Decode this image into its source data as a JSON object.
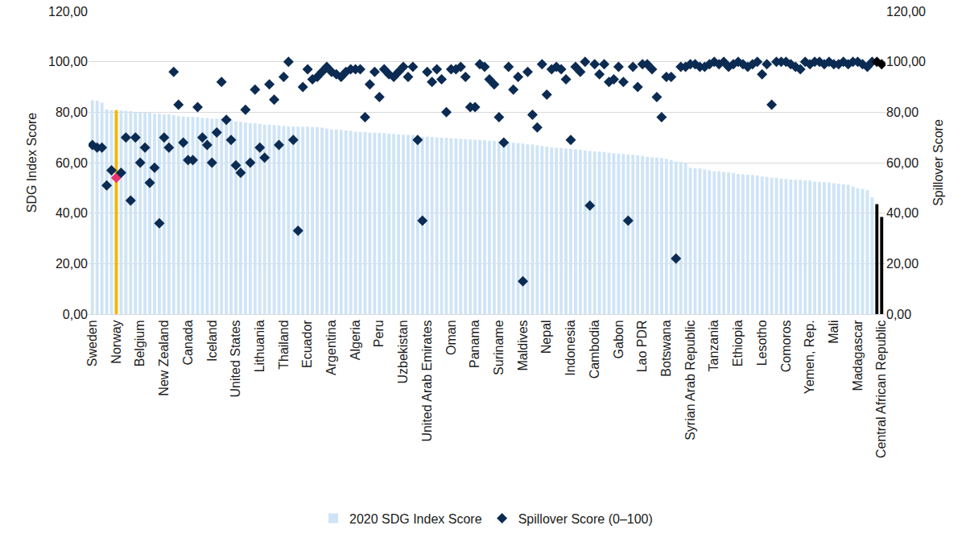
{
  "chart_data": {
    "type": "bar",
    "ylabel": "SDG Index Score",
    "y2label": "Spillover Score",
    "categories": [
      "Sweden",
      null,
      null,
      null,
      null,
      "Norway",
      null,
      null,
      null,
      null,
      "Belgium",
      null,
      null,
      null,
      null,
      "New Zealand",
      null,
      null,
      null,
      null,
      "Canada",
      null,
      null,
      null,
      null,
      "Iceland",
      null,
      null,
      null,
      null,
      "United States",
      null,
      null,
      null,
      null,
      "Lithuania",
      null,
      null,
      null,
      null,
      "Thailand",
      null,
      null,
      null,
      null,
      "Ecuador",
      null,
      null,
      null,
      null,
      "Argentina",
      null,
      null,
      null,
      null,
      "Algeria",
      null,
      null,
      null,
      null,
      "Peru",
      null,
      null,
      null,
      null,
      "Uzbekistan",
      null,
      null,
      null,
      null,
      "United Arab Emirates",
      null,
      null,
      null,
      null,
      "Oman",
      null,
      null,
      null,
      null,
      "Panama",
      null,
      null,
      null,
      null,
      "Suriname",
      null,
      null,
      null,
      null,
      "Maldives",
      null,
      null,
      null,
      null,
      "Nepal",
      null,
      null,
      null,
      null,
      "Indonesia",
      null,
      null,
      null,
      null,
      "Cambodia",
      null,
      null,
      null,
      null,
      "Gabon",
      null,
      null,
      null,
      null,
      "Lao PDR",
      null,
      null,
      null,
      null,
      "Botswana",
      null,
      null,
      null,
      null,
      "Syrian Arab Republic",
      null,
      null,
      null,
      null,
      "Tanzania",
      null,
      null,
      null,
      null,
      "Ethiopia",
      null,
      null,
      null,
      null,
      "Lesotho",
      null,
      null,
      null,
      null,
      "Comoros",
      null,
      null,
      null,
      null,
      "Yemen, Rep.",
      null,
      null,
      null,
      null,
      "Mali",
      null,
      null,
      null,
      null,
      "Madagascar",
      null,
      null,
      null,
      null,
      "Central African Republic"
    ],
    "series": [
      {
        "name": "2020 SDG Index Score",
        "type": "bar",
        "color": "#cfe4f6",
        "colors": [
          "#cfe4f6",
          "#cfe4f6",
          "#cfe4f6",
          "#cfe4f6",
          "#cfe4f6",
          "#f5b400",
          "#cfe4f6",
          "#cfe4f6",
          "#cfe4f6",
          "#cfe4f6",
          "#cfe4f6",
          "#cfe4f6",
          "#cfe4f6",
          "#cfe4f6",
          "#cfe4f6",
          "#cfe4f6",
          "#cfe4f6",
          "#cfe4f6",
          "#cfe4f6",
          "#cfe4f6",
          "#cfe4f6",
          "#cfe4f6",
          "#cfe4f6",
          "#cfe4f6",
          "#cfe4f6",
          "#cfe4f6",
          "#cfe4f6",
          "#cfe4f6",
          "#cfe4f6",
          "#cfe4f6",
          "#cfe4f6",
          "#cfe4f6",
          "#cfe4f6",
          "#cfe4f6",
          "#cfe4f6",
          "#cfe4f6",
          "#cfe4f6",
          "#cfe4f6",
          "#cfe4f6",
          "#cfe4f6",
          "#cfe4f6",
          "#cfe4f6",
          "#cfe4f6",
          "#cfe4f6",
          "#cfe4f6",
          "#cfe4f6",
          "#cfe4f6",
          "#cfe4f6",
          "#cfe4f6",
          "#cfe4f6",
          "#cfe4f6",
          "#cfe4f6",
          "#cfe4f6",
          "#cfe4f6",
          "#cfe4f6",
          "#cfe4f6",
          "#cfe4f6",
          "#cfe4f6",
          "#cfe4f6",
          "#cfe4f6",
          "#cfe4f6",
          "#cfe4f6",
          "#cfe4f6",
          "#cfe4f6",
          "#cfe4f6",
          "#cfe4f6",
          "#cfe4f6",
          "#cfe4f6",
          "#cfe4f6",
          "#cfe4f6",
          "#cfe4f6",
          "#cfe4f6",
          "#cfe4f6",
          "#cfe4f6",
          "#cfe4f6",
          "#cfe4f6",
          "#cfe4f6",
          "#cfe4f6",
          "#cfe4f6",
          "#cfe4f6",
          "#cfe4f6",
          "#cfe4f6",
          "#cfe4f6",
          "#cfe4f6",
          "#cfe4f6",
          "#cfe4f6",
          "#cfe4f6",
          "#cfe4f6",
          "#cfe4f6",
          "#cfe4f6",
          "#cfe4f6",
          "#cfe4f6",
          "#cfe4f6",
          "#cfe4f6",
          "#cfe4f6",
          "#cfe4f6",
          "#cfe4f6",
          "#cfe4f6",
          "#cfe4f6",
          "#cfe4f6",
          "#cfe4f6",
          "#cfe4f6",
          "#cfe4f6",
          "#cfe4f6",
          "#cfe4f6",
          "#cfe4f6",
          "#cfe4f6",
          "#cfe4f6",
          "#cfe4f6",
          "#cfe4f6",
          "#cfe4f6",
          "#cfe4f6",
          "#cfe4f6",
          "#cfe4f6",
          "#cfe4f6",
          "#cfe4f6",
          "#cfe4f6",
          "#cfe4f6",
          "#cfe4f6",
          "#cfe4f6",
          "#cfe4f6",
          "#cfe4f6",
          "#cfe4f6",
          "#cfe4f6",
          "#cfe4f6",
          "#cfe4f6",
          "#cfe4f6",
          "#cfe4f6",
          "#cfe4f6",
          "#cfe4f6",
          "#cfe4f6",
          "#cfe4f6",
          "#cfe4f6",
          "#cfe4f6",
          "#cfe4f6",
          "#cfe4f6",
          "#cfe4f6",
          "#cfe4f6",
          "#cfe4f6",
          "#cfe4f6",
          "#cfe4f6",
          "#cfe4f6",
          "#cfe4f6",
          "#cfe4f6",
          "#cfe4f6",
          "#cfe4f6",
          "#cfe4f6",
          "#cfe4f6",
          "#cfe4f6",
          "#cfe4f6",
          "#cfe4f6",
          "#cfe4f6",
          "#cfe4f6",
          "#cfe4f6",
          "#cfe4f6",
          "#cfe4f6",
          "#cfe4f6",
          "#cfe4f6",
          "#cfe4f6",
          "#cfe4f6",
          "#cfe4f6",
          "#cfe4f6",
          "#cfe4f6",
          "#cfe4f6"
        ],
        "values": [
          84.7,
          84.6,
          83.8,
          81.1,
          80.8,
          80.8,
          80.7,
          80.6,
          80.4,
          80.1,
          80.0,
          79.8,
          79.8,
          79.4,
          79.4,
          79.2,
          79.2,
          78.8,
          78.4,
          78.3,
          78.2,
          78.1,
          78.1,
          77.7,
          77.7,
          77.5,
          77.5,
          77.4,
          77.3,
          77.0,
          76.4,
          76.2,
          75.9,
          75.7,
          75.6,
          75.4,
          75.1,
          75.0,
          74.9,
          74.7,
          74.5,
          74.4,
          74.3,
          74.3,
          74.3,
          74.3,
          74.2,
          74.1,
          73.9,
          73.5,
          73.2,
          73.2,
          73.0,
          72.8,
          72.6,
          72.3,
          72.2,
          72.1,
          71.9,
          71.9,
          71.8,
          71.7,
          71.5,
          71.4,
          71.2,
          71.1,
          71.0,
          70.9,
          70.8,
          70.3,
          70.3,
          70.2,
          70.0,
          69.9,
          69.8,
          69.7,
          69.6,
          69.4,
          69.3,
          69.2,
          69.1,
          69.0,
          68.9,
          68.7,
          68.6,
          68.4,
          68.3,
          68.2,
          67.9,
          67.7,
          67.6,
          67.3,
          67.2,
          66.9,
          66.6,
          66.4,
          66.1,
          65.9,
          65.8,
          65.6,
          65.5,
          65.3,
          65.1,
          64.8,
          64.6,
          64.5,
          64.4,
          64.2,
          63.9,
          63.7,
          63.6,
          63.4,
          63.2,
          63.1,
          62.9,
          62.7,
          62.3,
          62.1,
          62.0,
          61.8,
          61.5,
          61.0,
          60.5,
          60.3,
          59.8,
          58.0,
          57.8,
          57.7,
          57.3,
          57.0,
          56.6,
          56.6,
          56.3,
          56.2,
          55.9,
          55.5,
          55.4,
          55.2,
          55.1,
          54.9,
          54.5,
          54.3,
          54.0,
          53.9,
          53.6,
          53.5,
          53.3,
          53.2,
          53.1,
          53.0,
          52.9,
          52.5,
          52.4,
          52.3,
          52.1,
          51.9,
          51.6,
          51.4,
          51.2,
          50.6,
          49.9,
          49.6,
          49.1,
          46.3,
          43.6,
          38.5
        ]
      },
      {
        "name": "Spillover Score (0–100)",
        "type": "scatter",
        "marker": "diamond",
        "axis": "y2",
        "color": "#0c2b52",
        "colors": [
          "#0c2b52",
          "#0c2b52",
          "#0c2b52",
          "#0c2b52",
          "#0c2b52",
          "#e8336d",
          "#0c2b52",
          "#0c2b52",
          "#0c2b52",
          "#0c2b52",
          "#0c2b52",
          "#0c2b52",
          "#0c2b52",
          "#0c2b52",
          "#0c2b52",
          "#0c2b52",
          "#0c2b52",
          "#0c2b52",
          "#0c2b52",
          "#0c2b52",
          "#0c2b52",
          "#0c2b52",
          "#0c2b52",
          "#0c2b52",
          "#0c2b52",
          "#0c2b52",
          "#0c2b52",
          "#0c2b52",
          "#0c2b52",
          "#0c2b52",
          "#0c2b52",
          "#0c2b52",
          "#0c2b52",
          "#0c2b52",
          "#0c2b52",
          "#0c2b52",
          "#0c2b52",
          "#0c2b52",
          "#0c2b52",
          "#0c2b52",
          "#0c2b52",
          "#0c2b52",
          "#0c2b52",
          "#0c2b52",
          "#0c2b52",
          "#0c2b52",
          "#0c2b52",
          "#0c2b52",
          "#0c2b52",
          "#0c2b52",
          "#0c2b52",
          "#0c2b52",
          "#0c2b52",
          "#0c2b52",
          "#0c2b52",
          "#0c2b52",
          "#0c2b52",
          "#0c2b52",
          "#0c2b52",
          "#0c2b52",
          "#0c2b52",
          "#0c2b52",
          "#0c2b52",
          "#0c2b52",
          "#0c2b52",
          "#0c2b52",
          "#0c2b52",
          "#0c2b52",
          "#0c2b52",
          "#0c2b52",
          "#0c2b52",
          "#0c2b52",
          "#0c2b52",
          "#0c2b52",
          "#0c2b52",
          "#0c2b52",
          "#0c2b52",
          "#0c2b52",
          "#0c2b52",
          "#0c2b52",
          "#0c2b52",
          "#0c2b52",
          "#0c2b52",
          "#0c2b52",
          "#0c2b52",
          "#0c2b52",
          "#0c2b52",
          "#0c2b52",
          "#0c2b52",
          "#0c2b52",
          "#0c2b52",
          "#0c2b52",
          "#0c2b52",
          "#0c2b52",
          "#0c2b52",
          "#0c2b52",
          "#0c2b52",
          "#0c2b52",
          "#0c2b52",
          "#0c2b52",
          "#0c2b52",
          "#0c2b52",
          "#0c2b52",
          "#0c2b52",
          "#0c2b52",
          "#0c2b52",
          "#0c2b52",
          "#0c2b52",
          "#0c2b52",
          "#0c2b52",
          "#0c2b52",
          "#0c2b52",
          "#0c2b52",
          "#0c2b52",
          "#0c2b52",
          "#0c2b52",
          "#0c2b52",
          "#0c2b52",
          "#0c2b52",
          "#0c2b52",
          "#0c2b52",
          "#0c2b52",
          "#0c2b52",
          "#0c2b52",
          "#0c2b52",
          "#0c2b52",
          "#0c2b52",
          "#0c2b52",
          "#0c2b52",
          "#0c2b52",
          "#0c2b52",
          "#0c2b52",
          "#0c2b52",
          "#0c2b52",
          "#0c2b52",
          "#0c2b52",
          "#0c2b52",
          "#0c2b52",
          "#0c2b52",
          "#0c2b52",
          "#0c2b52",
          "#0c2b52",
          "#0c2b52",
          "#0c2b52",
          "#0c2b52",
          "#0c2b52",
          "#0c2b52",
          "#0c2b52",
          "#0c2b52",
          "#0c2b52",
          "#0c2b52",
          "#0c2b52",
          "#0c2b52",
          "#0c2b52",
          "#0c2b52",
          "#0c2b52",
          "#0c2b52",
          "#0c2b52",
          "#0c2b52",
          "#0c2b52",
          "#0c2b52",
          "#0c2b52",
          "#0c2b52",
          "#0c2b52"
        ],
        "values": [
          67,
          66,
          66,
          51,
          57,
          54,
          56,
          70,
          45,
          70,
          60,
          66,
          52,
          58,
          36,
          70,
          66,
          96,
          83,
          68,
          61,
          61,
          82,
          70,
          67,
          60,
          72,
          92,
          77,
          69,
          59,
          56,
          81,
          60,
          89,
          66,
          62,
          91,
          85,
          67,
          94,
          100,
          69,
          33,
          90,
          97,
          93,
          94,
          96,
          98,
          96,
          95,
          94,
          96,
          97,
          97,
          97,
          78,
          91,
          96,
          86,
          97,
          95,
          94,
          96,
          98,
          94,
          98,
          69,
          37,
          96,
          92,
          97,
          93,
          80,
          97,
          97,
          98,
          94,
          82,
          82,
          99,
          98,
          93,
          91,
          78,
          68,
          98,
          89,
          94,
          13,
          96,
          79,
          74,
          99,
          87,
          97,
          98,
          97,
          93,
          69,
          98,
          96,
          100,
          43,
          99,
          95,
          99,
          92,
          93,
          98,
          92,
          37,
          98,
          90,
          99,
          99,
          97,
          86,
          78,
          94,
          94,
          22,
          98,
          98,
          99,
          99,
          98,
          98,
          99,
          100,
          99,
          100,
          98,
          99,
          100,
          99,
          98,
          99,
          100,
          95,
          99,
          83,
          100,
          100,
          100,
          99,
          98,
          97,
          100,
          99,
          100,
          100,
          99,
          100,
          99,
          99,
          100,
          99,
          100,
          100,
          99,
          98,
          100,
          100,
          99
        ]
      }
    ],
    "ylim": [
      0,
      120
    ],
    "yticks": [
      {
        "value": 0,
        "label": "0,00"
      },
      {
        "value": 20,
        "label": "20,00"
      },
      {
        "value": 40,
        "label": "40,00"
      },
      {
        "value": 60,
        "label": "60,00"
      },
      {
        "value": 80,
        "label": "80,00"
      },
      {
        "value": 100,
        "label": "100,00"
      },
      {
        "value": 120,
        "label": "120,00"
      }
    ],
    "y2lim": [
      0,
      120
    ],
    "y2ticks": [
      {
        "value": 0,
        "label": "0,00"
      },
      {
        "value": 20,
        "label": "20,00"
      },
      {
        "value": 40,
        "label": "40,00"
      },
      {
        "value": 60,
        "label": "60,00"
      },
      {
        "value": 80,
        "label": "80,00"
      },
      {
        "value": 100,
        "label": "100,00"
      },
      {
        "value": 120,
        "label": "120,00"
      }
    ],
    "grid": true,
    "legend": "bottom"
  }
}
